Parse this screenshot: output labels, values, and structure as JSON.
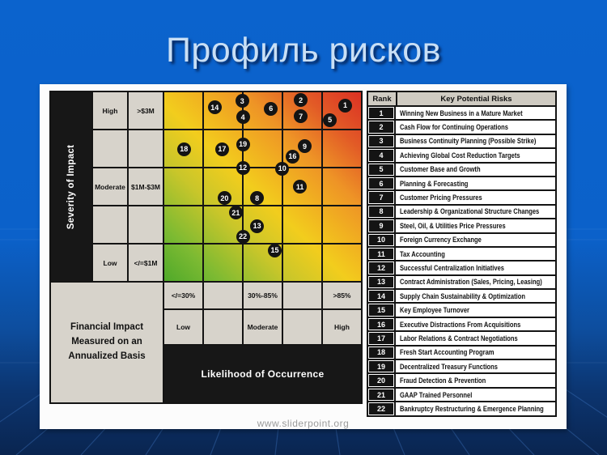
{
  "slide": {
    "title": "Профиль рисков",
    "footer": "www.sliderpoint.org",
    "background_color": "#0b61ca",
    "background_dark_color": "#0a2550",
    "title_color": "#c9dff5"
  },
  "matrix": {
    "severity_axis": "Severity of Impact",
    "likelihood_axis": "Likelihood of Occurrence",
    "financial_note": "Financial Impact Measured on an Annualized Basis",
    "severity_rows": [
      {
        "level": "High",
        "range": ">$3M"
      },
      {
        "level": "",
        "range": ""
      },
      {
        "level": "Moderate",
        "range": "$1M-$3M"
      },
      {
        "level": "",
        "range": ""
      },
      {
        "level": "Low",
        "range": "</=$1M"
      }
    ],
    "likelihood_pcts": [
      "</=30%",
      "",
      "30%-85%",
      "",
      ">85%"
    ],
    "likelihood_words": [
      "Low",
      "",
      "Moderate",
      "",
      "High"
    ],
    "colors": {
      "low_risk": "#4fa92a",
      "medium_risk": "#f2cd1d",
      "high_risk": "#db3124",
      "grid_line": "#141414",
      "label_cell": "#d7d3cb"
    }
  },
  "chart_data": {
    "type": "scatter",
    "title": "Профиль рисков (risk profile heat-map matrix)",
    "xlabel": "Likelihood of Occurrence",
    "ylabel": "Severity of Impact",
    "x_bands": [
      "Low </=30%",
      "",
      "Moderate 30%-85%",
      "",
      "High >85%"
    ],
    "y_bands_top_to_bottom": [
      "High >$3M",
      "",
      "Moderate $1M-$3M",
      "",
      "Low </=$1M"
    ],
    "axis_units": "grid cells 0-5; x from left (likelihood), y from top (severity high at top)",
    "points": [
      {
        "rank": "1",
        "x": 4.6,
        "y": 0.35
      },
      {
        "rank": "2",
        "x": 3.47,
        "y": 0.21
      },
      {
        "rank": "3",
        "x": 1.98,
        "y": 0.23
      },
      {
        "rank": "4",
        "x": 2.0,
        "y": 0.66
      },
      {
        "rank": "5",
        "x": 4.21,
        "y": 0.74
      },
      {
        "rank": "6",
        "x": 2.71,
        "y": 0.43
      },
      {
        "rank": "7",
        "x": 3.47,
        "y": 0.64
      },
      {
        "rank": "8",
        "x": 2.36,
        "y": 2.81
      },
      {
        "rank": "9",
        "x": 3.57,
        "y": 1.43
      },
      {
        "rank": "10",
        "x": 3.0,
        "y": 2.02
      },
      {
        "rank": "11",
        "x": 3.45,
        "y": 2.51
      },
      {
        "rank": "12",
        "x": 2.0,
        "y": 2.0
      },
      {
        "rank": "13",
        "x": 2.36,
        "y": 3.55
      },
      {
        "rank": "14",
        "x": 1.28,
        "y": 0.4
      },
      {
        "rank": "15",
        "x": 2.81,
        "y": 4.19
      },
      {
        "rank": "16",
        "x": 3.26,
        "y": 1.7
      },
      {
        "rank": "17",
        "x": 1.47,
        "y": 1.51
      },
      {
        "rank": "18",
        "x": 0.5,
        "y": 1.51
      },
      {
        "rank": "19",
        "x": 2.0,
        "y": 1.38
      },
      {
        "rank": "20",
        "x": 1.53,
        "y": 2.81
      },
      {
        "rank": "21",
        "x": 1.82,
        "y": 3.19
      },
      {
        "rank": "22",
        "x": 2.0,
        "y": 3.83
      }
    ]
  },
  "risk_table": {
    "headers": {
      "rank": "Rank",
      "risk": "Key Potential Risks"
    },
    "rows": [
      {
        "rank": "1",
        "risk": "Winning New Business in a Mature Market"
      },
      {
        "rank": "2",
        "risk": "Cash Flow for Continuing Operations"
      },
      {
        "rank": "3",
        "risk": "Business Continuity Planning (Possible Strike)"
      },
      {
        "rank": "4",
        "risk": "Achieving Global Cost Reduction Targets"
      },
      {
        "rank": "5",
        "risk": "Customer Base and Growth"
      },
      {
        "rank": "6",
        "risk": "Planning & Forecasting"
      },
      {
        "rank": "7",
        "risk": "Customer Pricing Pressures"
      },
      {
        "rank": "8",
        "risk": "Leadership & Organizational Structure Changes"
      },
      {
        "rank": "9",
        "risk": "Steel, Oil, & Utilities Price Pressures"
      },
      {
        "rank": "10",
        "risk": "Foreign Currency Exchange"
      },
      {
        "rank": "11",
        "risk": "Tax Accounting"
      },
      {
        "rank": "12",
        "risk": "Successful Centralization Initiatives"
      },
      {
        "rank": "13",
        "risk": "Contract Administration (Sales, Pricing, Leasing)"
      },
      {
        "rank": "14",
        "risk": "Supply Chain Sustainability & Optimization"
      },
      {
        "rank": "15",
        "risk": "Key Employee Turnover"
      },
      {
        "rank": "16",
        "risk": "Executive Distractions From Acquisitions"
      },
      {
        "rank": "17",
        "risk": "Labor Relations & Contract Negotiations"
      },
      {
        "rank": "18",
        "risk": "Fresh Start Accounting Program"
      },
      {
        "rank": "19",
        "risk": "Decentralized Treasury Functions"
      },
      {
        "rank": "20",
        "risk": "Fraud Detection & Prevention"
      },
      {
        "rank": "21",
        "risk": "GAAP Trained Personnel"
      },
      {
        "rank": "22",
        "risk": "Bankruptcy Restructuring & Emergence Planning"
      }
    ]
  }
}
